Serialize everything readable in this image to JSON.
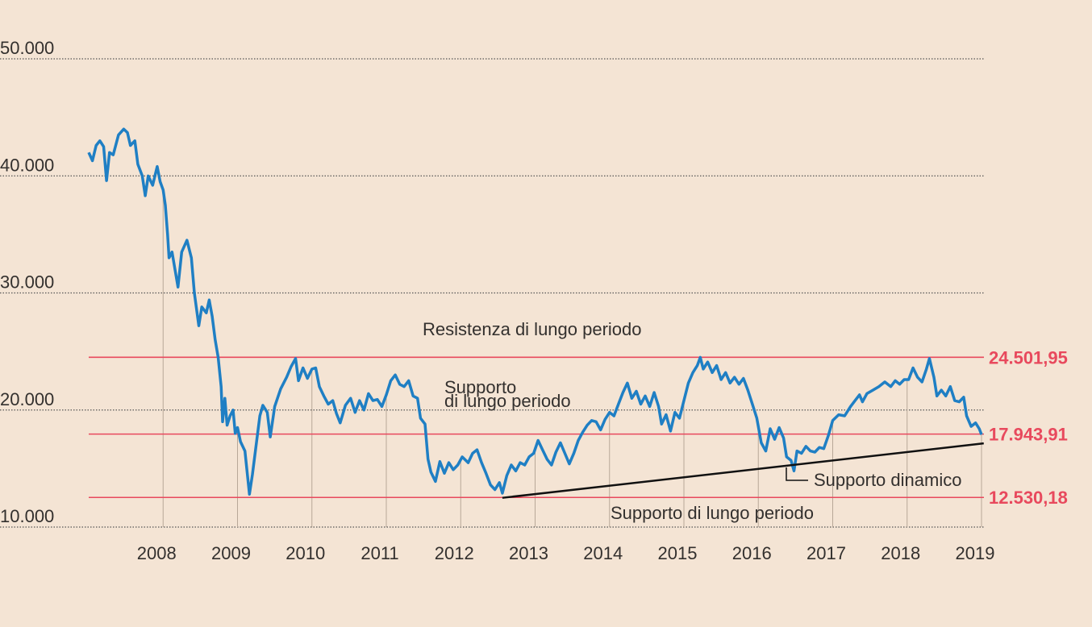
{
  "chart_data": {
    "type": "line",
    "color": "#1f7fc4",
    "x": [
      2007.0,
      2007.05,
      2007.1,
      2007.15,
      2007.2,
      2007.24,
      2007.28,
      2007.33,
      2007.4,
      2007.47,
      2007.52,
      2007.56,
      2007.62,
      2007.66,
      2007.72,
      2007.76,
      2007.8,
      2007.86,
      2007.92,
      2007.96,
      2008.0,
      2008.03,
      2008.06,
      2008.08,
      2008.12,
      2008.16,
      2008.2,
      2008.25,
      2008.32,
      2008.38,
      2008.42,
      2008.48,
      2008.52,
      2008.58,
      2008.62,
      2008.66,
      2008.7,
      2008.74,
      2008.78,
      2008.8,
      2008.83,
      2008.86,
      2008.9,
      2008.94,
      2008.97,
      2009.0,
      2009.04,
      2009.1,
      2009.16,
      2009.2,
      2009.26,
      2009.3,
      2009.34,
      2009.4,
      2009.44,
      2009.5,
      2009.58,
      2009.66,
      2009.72,
      2009.78,
      2009.82,
      2009.88,
      2009.94,
      2010.0,
      2010.05,
      2010.1,
      2010.16,
      2010.22,
      2010.28,
      2010.33,
      2010.38,
      2010.45,
      2010.52,
      2010.58,
      2010.64,
      2010.7,
      2010.76,
      2010.82,
      2010.88,
      2010.94,
      2011.0,
      2011.06,
      2011.12,
      2011.18,
      2011.24,
      2011.3,
      2011.36,
      2011.42,
      2011.46,
      2011.52,
      2011.56,
      2011.6,
      2011.66,
      2011.72,
      2011.78,
      2011.84,
      2011.9,
      2011.96,
      2012.02,
      2012.1,
      2012.16,
      2012.22,
      2012.28,
      2012.34,
      2012.4,
      2012.46,
      2012.52,
      2012.56,
      2012.62,
      2012.68,
      2012.74,
      2012.8,
      2012.86,
      2012.92,
      2012.98,
      2013.04,
      2013.1,
      2013.16,
      2013.22,
      2013.28,
      2013.34,
      2013.4,
      2013.46,
      2013.52,
      2013.58,
      2013.64,
      2013.7,
      2013.76,
      2013.82,
      2013.88,
      2013.94,
      2014.0,
      2014.06,
      2014.12,
      2014.18,
      2014.24,
      2014.3,
      2014.36,
      2014.42,
      2014.48,
      2014.54,
      2014.6,
      2014.66,
      2014.7,
      2014.76,
      2014.82,
      2014.88,
      2014.94,
      2015.0,
      2015.06,
      2015.12,
      2015.18,
      2015.22,
      2015.26,
      2015.32,
      2015.38,
      2015.44,
      2015.5,
      2015.56,
      2015.62,
      2015.68,
      2015.74,
      2015.8,
      2015.86,
      2015.92,
      2015.98,
      2016.04,
      2016.1,
      2016.16,
      2016.22,
      2016.28,
      2016.34,
      2016.38,
      2016.44,
      2016.48,
      2016.52,
      2016.58,
      2016.64,
      2016.7,
      2016.76,
      2016.82,
      2016.88,
      2016.94,
      2017.0,
      2017.08,
      2017.16,
      2017.24,
      2017.3,
      2017.36,
      2017.4,
      2017.46,
      2017.54,
      2017.62,
      2017.7,
      2017.78,
      2017.84,
      2017.9,
      2017.96,
      2018.02,
      2018.08,
      2018.14,
      2018.2,
      2018.26,
      2018.3,
      2018.36,
      2018.4,
      2018.46,
      2018.52,
      2018.58,
      2018.64,
      2018.7,
      2018.76,
      2018.8,
      2018.86,
      2018.92,
      2018.97,
      2019.0
    ],
    "values": [
      42000,
      41300,
      42600,
      43000,
      42500,
      39600,
      42000,
      41800,
      43500,
      44000,
      43700,
      42600,
      43000,
      41000,
      40000,
      38300,
      40000,
      39200,
      40800,
      39500,
      38800,
      37500,
      35000,
      33000,
      33500,
      32000,
      30500,
      33500,
      34500,
      33000,
      30000,
      27200,
      28800,
      28300,
      29400,
      28000,
      26000,
      24500,
      22000,
      19000,
      21000,
      18700,
      19500,
      20000,
      18000,
      18500,
      17300,
      16500,
      12800,
      14500,
      17500,
      19500,
      20400,
      19800,
      17700,
      20300,
      21800,
      22800,
      23700,
      24400,
      22500,
      23600,
      22700,
      23500,
      23600,
      22000,
      21200,
      20500,
      20800,
      19700,
      18900,
      20400,
      21000,
      19800,
      20800,
      20000,
      21400,
      20800,
      20900,
      20300,
      21300,
      22500,
      23000,
      22200,
      22000,
      22500,
      21200,
      21000,
      19300,
      18800,
      15800,
      14700,
      13900,
      15600,
      14600,
      15500,
      14900,
      15300,
      16000,
      15500,
      16300,
      16600,
      15500,
      14600,
      13600,
      13200,
      13800,
      12900,
      14400,
      15300,
      14800,
      15500,
      15300,
      16000,
      16300,
      17400,
      16600,
      15800,
      15300,
      16400,
      17200,
      16300,
      15400,
      16300,
      17400,
      18100,
      18700,
      19100,
      19000,
      18300,
      19200,
      19800,
      19500,
      20500,
      21500,
      22300,
      21000,
      21600,
      20500,
      21200,
      20300,
      21500,
      20300,
      18800,
      19600,
      18200,
      19800,
      19300,
      20800,
      22300,
      23200,
      23800,
      24500,
      23500,
      24100,
      23200,
      23800,
      22600,
      23200,
      22300,
      22800,
      22200,
      22700,
      21700,
      20500,
      19300,
      17200,
      16500,
      18400,
      17500,
      18500,
      17600,
      16000,
      15700,
      14800,
      16500,
      16300,
      16900,
      16500,
      16400,
      16800,
      16700,
      17800,
      19100,
      19600,
      19500,
      20300,
      20800,
      21300,
      20700,
      21400,
      21700,
      22000,
      22400,
      22000,
      22500,
      22200,
      22600,
      22600,
      23600,
      22800,
      22400,
      23500,
      24400,
      22800,
      21200,
      21700,
      21200,
      22000,
      20800,
      20700,
      21100,
      19500,
      18600,
      18900,
      18400,
      17900
    ],
    "xlim": [
      2007,
      2019
    ],
    "xticks": [
      2008,
      2009,
      2010,
      2011,
      2012,
      2013,
      2014,
      2015,
      2016,
      2017,
      2018,
      2019
    ],
    "ylim": [
      10000,
      50000
    ],
    "yticks": [
      {
        "value": 10000,
        "label": "10.000"
      },
      {
        "value": 20000,
        "label": "20.000"
      },
      {
        "value": 30000,
        "label": "30.000"
      },
      {
        "value": 40000,
        "label": "40.000"
      },
      {
        "value": 50000,
        "label": "50.000"
      }
    ],
    "grid": true,
    "reference_lines": [
      {
        "value": 24501.95,
        "label": "24.501,95"
      },
      {
        "value": 17943.91,
        "label": "17.943,91"
      },
      {
        "value": 12530.18,
        "label": "12.530,18"
      }
    ],
    "reference_color": "#e8495d",
    "trend_line": {
      "x": [
        2012.56,
        2019.03
      ],
      "values": [
        12500,
        17150
      ],
      "color": "#111111"
    },
    "annotations": [
      "Resistenza di lungo periodo",
      "Supporto",
      "di lungo periodo",
      "Supporto di lungo periodo",
      "Supporto dinamico"
    ]
  }
}
